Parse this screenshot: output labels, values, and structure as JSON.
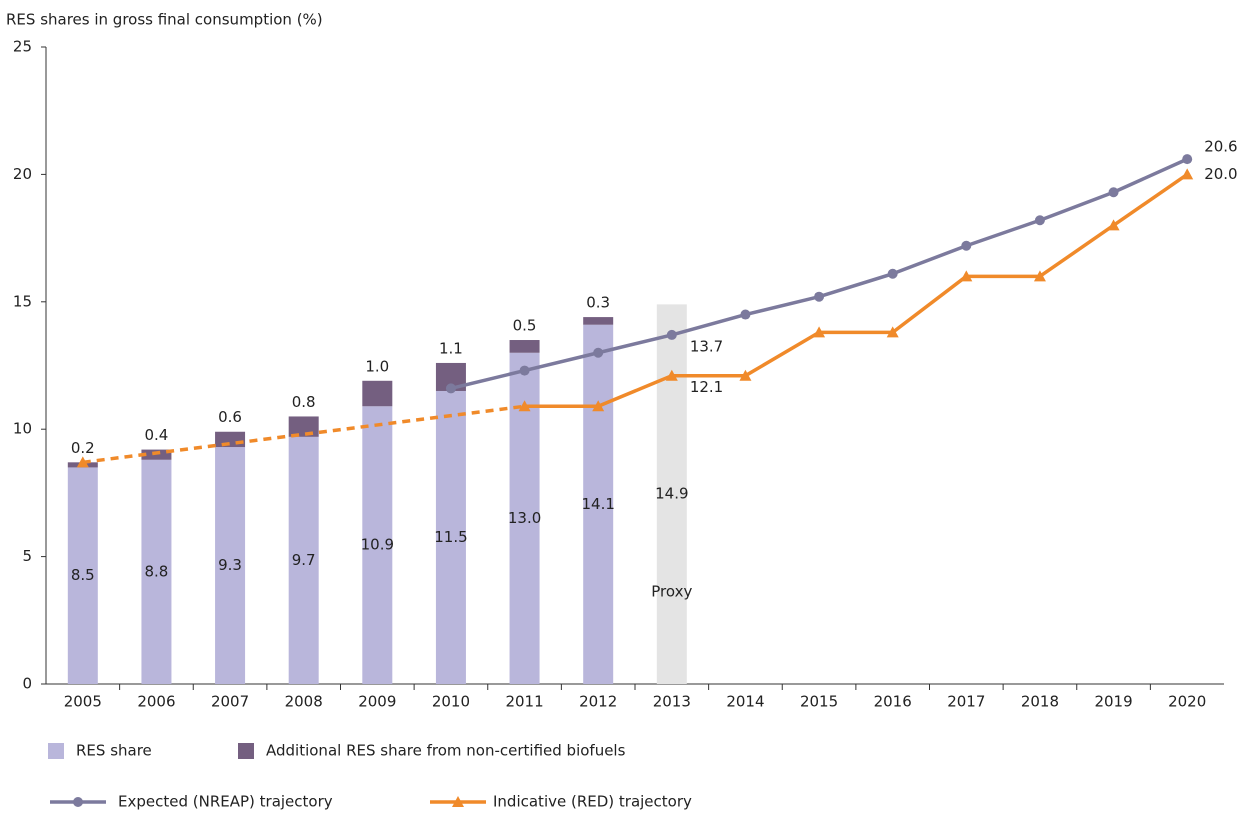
{
  "chart_data": {
    "type": "bar-line",
    "y_axis_label": "RES shares in gross final consumption (%)",
    "categories": [
      "2005",
      "2006",
      "2007",
      "2008",
      "2009",
      "2010",
      "2011",
      "2012",
      "2013",
      "2014",
      "2015",
      "2016",
      "2017",
      "2018",
      "2019",
      "2020"
    ],
    "ylim": [
      0,
      25
    ],
    "yticks": [
      0,
      5,
      10,
      15,
      20,
      25
    ],
    "grid": false,
    "bars": [
      {
        "name": "RES share",
        "color": "#b9b6db",
        "values": [
          8.5,
          8.8,
          9.3,
          9.7,
          10.9,
          11.5,
          13.0,
          14.1,
          null,
          null,
          null,
          null,
          null,
          null,
          null,
          null
        ],
        "value_labels": [
          "8.5",
          "8.8",
          "9.3",
          "9.7",
          "10.9",
          "11.5",
          "13.0",
          "14.1",
          null,
          null,
          null,
          null,
          null,
          null,
          null,
          null
        ]
      },
      {
        "name": "Additional RES share from non-certified biofuels",
        "color": "#745f80",
        "values": [
          0.2,
          0.4,
          0.6,
          0.8,
          1.0,
          1.1,
          0.5,
          0.3,
          null,
          null,
          null,
          null,
          null,
          null,
          null,
          null
        ],
        "value_labels": [
          "0.2",
          "0.4",
          "0.6",
          "0.8",
          "1.0",
          "1.1",
          "0.5",
          "0.3",
          null,
          null,
          null,
          null,
          null,
          null,
          null,
          null
        ]
      }
    ],
    "proxy": {
      "label": "Proxy",
      "color": "#e4e4e4",
      "values": [
        null,
        null,
        null,
        null,
        null,
        null,
        null,
        null,
        14.9,
        null,
        null,
        null,
        null,
        null,
        null,
        null
      ]
    },
    "lines": [
      {
        "name": "Expected (NREAP) trajectory",
        "color": "#7c7a9d",
        "marker": "circle",
        "values": [
          null,
          null,
          null,
          null,
          null,
          11.6,
          12.3,
          13.0,
          13.7,
          14.5,
          15.2,
          16.1,
          17.2,
          18.2,
          19.3,
          20.6
        ],
        "value_labels": [
          null,
          null,
          null,
          null,
          null,
          null,
          null,
          null,
          "13.7",
          null,
          null,
          null,
          null,
          null,
          null,
          "20.6"
        ]
      },
      {
        "name": "Indicative (RED) trajectory",
        "color": "#f08a2a",
        "marker": "triangle",
        "dashed_gaps": true,
        "values": [
          8.7,
          null,
          null,
          null,
          null,
          null,
          10.9,
          10.9,
          12.1,
          12.1,
          13.8,
          13.8,
          16.0,
          16.0,
          18.0,
          20.0
        ],
        "value_labels": [
          null,
          null,
          null,
          null,
          null,
          null,
          null,
          null,
          "12.1",
          null,
          null,
          null,
          null,
          null,
          null,
          "20.0"
        ]
      }
    ]
  }
}
